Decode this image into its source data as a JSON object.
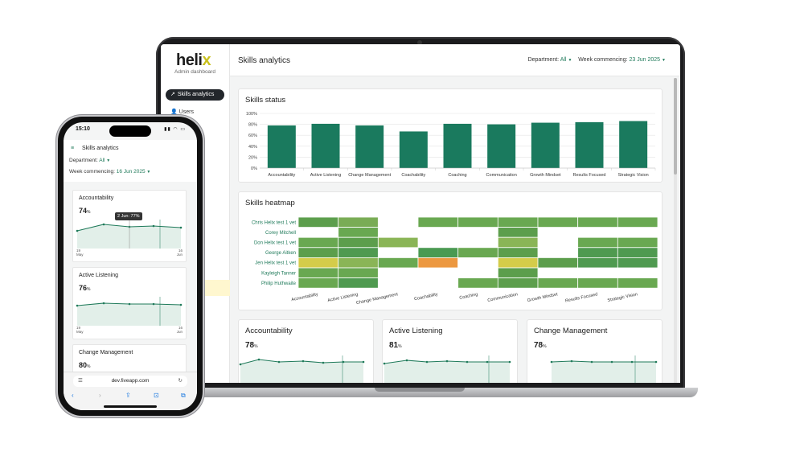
{
  "desktop": {
    "logo": {
      "text": "heli",
      "accent": "x",
      "subtitle": "Admin dashboard"
    },
    "nav": {
      "active": {
        "label": "Skills analytics",
        "icon": "trend-icon"
      },
      "items": [
        {
          "label": "Users",
          "icon": "user-icon"
        }
      ]
    },
    "header": {
      "title": "Skills analytics",
      "department_label": "Department:",
      "department_value": "All",
      "week_label": "Week commencing:",
      "week_value": "23 Jun 2025"
    },
    "skills_status": {
      "title": "Skills status",
      "chart_data": {
        "type": "bar",
        "categories": [
          "Accountability",
          "Active Listening",
          "Change Management",
          "Coachability",
          "Coaching",
          "Communication",
          "Growth Mindset",
          "Results Focused",
          "Strategic Vision"
        ],
        "values": [
          78,
          81,
          78,
          67,
          81,
          80,
          83,
          84,
          86
        ],
        "y_ticks": [
          "0%",
          "20%",
          "40%",
          "60%",
          "80%",
          "100%"
        ],
        "ylim": [
          0,
          100
        ],
        "grid": true,
        "color": "#1a7a5e"
      }
    },
    "skills_heatmap": {
      "title": "Skills heatmap",
      "chart_data": {
        "type": "heatmap",
        "rows": [
          "Chris Helix test 1 vet",
          "Corey Mitchell",
          "Don Helix test 1 vet",
          "George Aitken",
          "Jen Helix test 1 vet",
          "Kayleigh Tanner",
          "Philip Huthwaite"
        ],
        "columns": [
          "Accountability",
          "Active Listening",
          "Change Management",
          "Coachability",
          "Coaching",
          "Communication",
          "Growth Mindset",
          "Results Focused",
          "Strategic Vision"
        ],
        "colors": [
          [
            "#5c9e4c",
            "#79ac55",
            null,
            "#69a851",
            "#69a851",
            "#69a851",
            "#69a851",
            "#69a851",
            "#69a851"
          ],
          [
            null,
            "#69a851",
            null,
            null,
            null,
            "#5c9e4c",
            null,
            null,
            null
          ],
          [
            "#69a851",
            "#5c9e4c",
            "#8ab556",
            null,
            null,
            "#8ab556",
            null,
            "#69a851",
            "#69a851"
          ],
          [
            "#5c9e4c",
            "#4f9a50",
            null,
            "#4a9a52",
            "#69a851",
            "#5c9e4c",
            null,
            "#4f9a50",
            "#4f9a50"
          ],
          [
            "#d4cc4a",
            "#8ab556",
            "#69a851",
            "#ec9840",
            "#ffffff00",
            "#d4cc4a",
            "#5c9e4c",
            "#4f9a50",
            "#4f9a50"
          ],
          [
            "#69a851",
            "#69a851",
            null,
            null,
            null,
            "#5c9e4c",
            null,
            null,
            null
          ],
          [
            "#69a851",
            "#4f9a50",
            null,
            null,
            "#69a851",
            "#5c9e4c",
            "#69a851",
            "#69a851",
            "#69a851"
          ]
        ]
      }
    },
    "mini_cards": [
      {
        "title": "Accountability",
        "value": "78",
        "unit": "%"
      },
      {
        "title": "Active Listening",
        "value": "81",
        "unit": "%"
      },
      {
        "title": "Change Management",
        "value": "78",
        "unit": "%"
      }
    ]
  },
  "mobile": {
    "status": {
      "time": "15:10",
      "icons": "▮▮ ◠ ▭"
    },
    "header": {
      "menu_icon": "hamburger-icon",
      "title": "Skills analytics",
      "department_label": "Department:",
      "department_value": "All",
      "week_label": "Week commencing:",
      "week_value": "16 Jun 2025"
    },
    "cards": [
      {
        "title": "Accountability",
        "value": "74",
        "unit": "%",
        "tooltip": "2 Jun: 77%",
        "x_start": "19",
        "x_start_month": "May",
        "x_end": "16",
        "x_end_month": "Jun"
      },
      {
        "title": "Active Listening",
        "value": "76",
        "unit": "%",
        "x_start": "19",
        "x_start_month": "May",
        "x_end": "16",
        "x_end_month": "Jun"
      },
      {
        "title": "Change Management",
        "value": "80",
        "unit": "%"
      }
    ],
    "browser": {
      "url": "dev.fiveapp.com"
    }
  }
}
